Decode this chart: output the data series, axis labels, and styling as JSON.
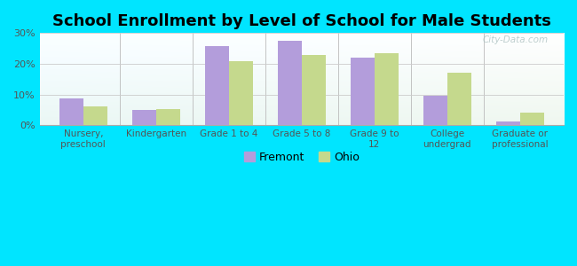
{
  "title": "School Enrollment by Level of School for Male Students",
  "categories": [
    "Nursery,\npreschool",
    "Kindergarten",
    "Grade 1 to 4",
    "Grade 5 to 8",
    "Grade 9 to\n12",
    "College\nundergrad",
    "Graduate or\nprofessional"
  ],
  "fremont_values": [
    8.7,
    5.0,
    25.7,
    27.5,
    22.0,
    9.5,
    1.2
  ],
  "ohio_values": [
    6.2,
    5.1,
    20.8,
    23.0,
    23.5,
    17.0,
    4.0
  ],
  "fremont_color": "#b39ddb",
  "ohio_color": "#c5d98d",
  "background_color": "#00e5ff",
  "ylabel_ticks": [
    "0%",
    "10%",
    "20%",
    "30%"
  ],
  "yticks": [
    0,
    10,
    20,
    30
  ],
  "ylim": [
    0,
    30
  ],
  "title_fontsize": 13,
  "legend_labels": [
    "Fremont",
    "Ohio"
  ],
  "watermark": "City-Data.com"
}
